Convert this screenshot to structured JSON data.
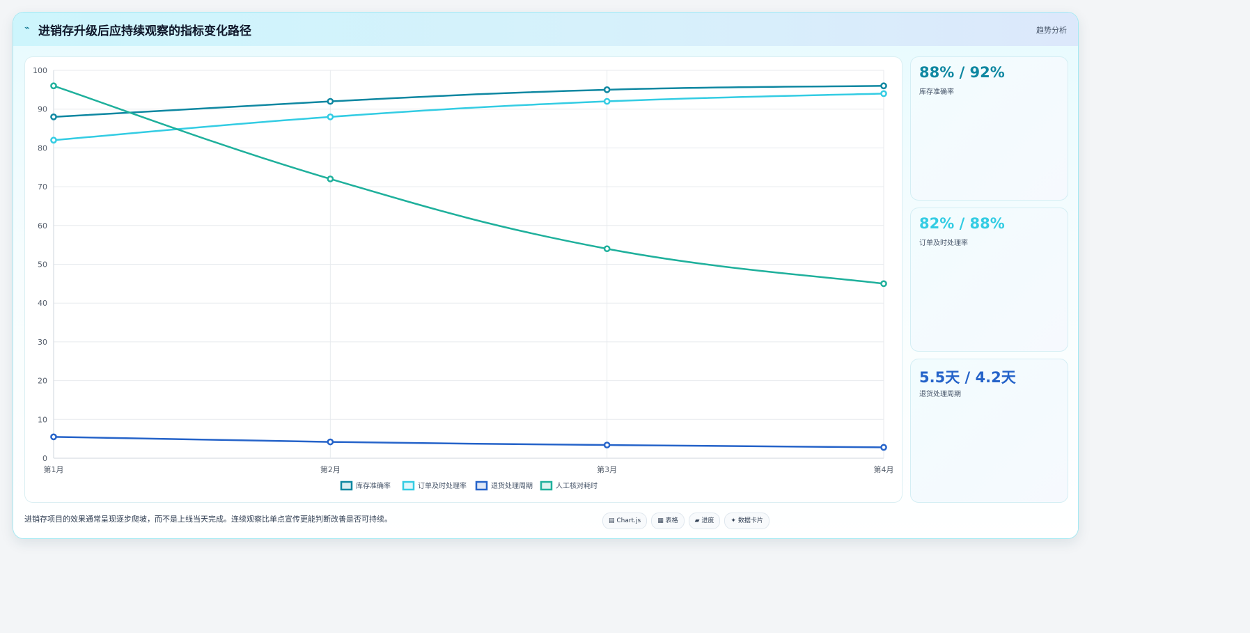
{
  "header": {
    "icon": "trend-line-icon",
    "title": "进销存升级后应持续观察的指标变化路径",
    "tag": "趋势分析"
  },
  "chart_data": {
    "type": "line",
    "categories": [
      "第1月",
      "第2月",
      "第3月",
      "第4月"
    ],
    "ylim": [
      0,
      100
    ],
    "yticks": [
      0,
      10,
      20,
      30,
      40,
      50,
      60,
      70,
      80,
      90,
      100
    ],
    "grid": true,
    "legend_position": "bottom",
    "series": [
      {
        "name": "库存准确率",
        "color": "#0e87a1",
        "values": [
          88,
          92,
          95,
          96
        ]
      },
      {
        "name": "订单及时处理率",
        "color": "#33cce3",
        "values": [
          82,
          88,
          92,
          94
        ]
      },
      {
        "name": "退货处理周期",
        "color": "#2563c9",
        "values": [
          5.5,
          4.2,
          3.4,
          2.8
        ]
      },
      {
        "name": "人工核对耗时",
        "color": "#1fb09c",
        "values": [
          96,
          72,
          54,
          45
        ]
      }
    ]
  },
  "stats": [
    {
      "value": "88% / 92%",
      "label": "库存准确率",
      "color": "#0e87a1"
    },
    {
      "value": "82% / 88%",
      "label": "订单及时处理率",
      "color": "#33cce3"
    },
    {
      "value": "5.5天 / 4.2天",
      "label": "退货处理周期",
      "color": "#2563c9"
    }
  ],
  "footnote": "进销存项目的效果通常呈现逐步爬坡，而不是上线当天完成。连续观察比单点宣传更能判断改善是否可持续。",
  "chips": [
    {
      "icon": "chart-icon",
      "glyph": "▤",
      "label": "Chart.js"
    },
    {
      "icon": "table-icon",
      "glyph": "▦",
      "label": "表格"
    },
    {
      "icon": "progress-icon",
      "glyph": "▰",
      "label": "进度"
    },
    {
      "icon": "sparkle-icon",
      "glyph": "✦",
      "label": "数据卡片"
    }
  ]
}
